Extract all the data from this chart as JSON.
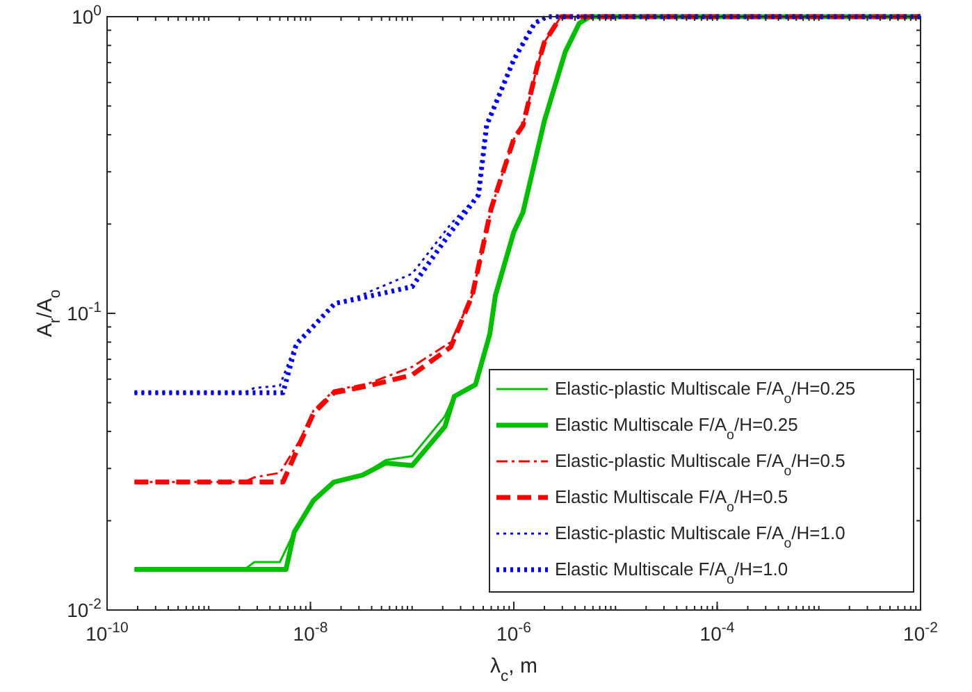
{
  "chart_data": {
    "type": "line",
    "xlabel": "λ$_{c}$, m",
    "ylabel": "A$_{r}$/A$_{o}$",
    "log": "xy",
    "xlim": [
      1e-10,
      0.01
    ],
    "ylim": [
      0.01,
      1
    ],
    "xticks": [
      {
        "value": 1e-10,
        "label": "10$^{-10}$"
      },
      {
        "value": 1e-08,
        "label": "10$^{-8}$"
      },
      {
        "value": 1e-06,
        "label": "10$^{-6}$"
      },
      {
        "value": 0.0001,
        "label": "10$^{-4}$"
      },
      {
        "value": 0.01,
        "label": "10$^{-2}$"
      }
    ],
    "yticks": [
      {
        "value": 0.01,
        "label": "10$^{-2}$"
      },
      {
        "value": 0.1,
        "label": "10$^{-1}$"
      },
      {
        "value": 1,
        "label": "10$^{0}$"
      }
    ],
    "grid": false,
    "legend": "bottom right",
    "marker": "none",
    "series": [
      {
        "name": "Elastic-plastic Multiscale F/A$_{o}$/H=0.25",
        "color": "#00c000",
        "line_style": "solid",
        "x": [
          1.86e-10,
          2.24e-09,
          2.8e-09,
          5e-09,
          6.92e-09,
          1.07e-08,
          1.7e-08,
          3.24e-08,
          5.5e-08,
          1e-07,
          2.1e-07,
          2.6e-07,
          4.2e-07,
          5.8e-07,
          6.6e-07,
          1e-06,
          1.23e-06,
          2e-06,
          3.2e-06,
          4.4e-06,
          5.6e-06,
          0.01
        ],
        "values": [
          0.0137,
          0.0137,
          0.0145,
          0.0145,
          0.0183,
          0.0234,
          0.027,
          0.0285,
          0.032,
          0.033,
          0.045,
          0.053,
          0.058,
          0.085,
          0.115,
          0.188,
          0.219,
          0.446,
          0.76,
          0.95,
          1,
          1
        ]
      },
      {
        "name": "Elastic Multiscale F/A$_{o}$/H=0.25",
        "color": "#00c000",
        "line_style": "solid",
        "x": [
          1.86e-10,
          5.75e-09,
          6.92e-09,
          1.07e-08,
          1.7e-08,
          3.24e-08,
          5.5e-08,
          1e-07,
          2.1e-07,
          2.6e-07,
          4.2e-07,
          5.8e-07,
          6.6e-07,
          1e-06,
          1.23e-06,
          2e-06,
          3.2e-06,
          4.4e-06,
          5.6e-06,
          0.01
        ],
        "values": [
          0.0137,
          0.0137,
          0.0183,
          0.0234,
          0.027,
          0.0285,
          0.0313,
          0.0307,
          0.0415,
          0.0525,
          0.0575,
          0.085,
          0.115,
          0.188,
          0.219,
          0.446,
          0.76,
          0.95,
          1,
          1
        ]
      },
      {
        "name": "Elastic-plastic Multiscale F/A$_{o}$/H=0.5",
        "color": "#ff0000",
        "line_style": "dashdot",
        "x": [
          1.86e-10,
          2.24e-09,
          2.8e-09,
          5e-09,
          7.76e-09,
          1.07e-08,
          1.7e-08,
          3.72e-08,
          1e-07,
          2.4e-07,
          3.9e-07,
          6e-07,
          1e-06,
          1.23e-06,
          1.7e-06,
          2e-06,
          2.9e-06,
          0.01
        ],
        "values": [
          0.027,
          0.027,
          0.028,
          0.029,
          0.037,
          0.047,
          0.055,
          0.058,
          0.066,
          0.08,
          0.115,
          0.226,
          0.387,
          0.43,
          0.68,
          0.82,
          1,
          1
        ]
      },
      {
        "name": "Elastic Multiscale F/A$_{o}$/H=0.5",
        "color": "#ff0000",
        "line_style": "dashed",
        "x": [
          1.86e-10,
          5.37e-09,
          7.76e-09,
          1.07e-08,
          1.7e-08,
          3.72e-08,
          1e-07,
          2.4e-07,
          3.9e-07,
          6e-07,
          1e-06,
          1.23e-06,
          1.7e-06,
          2e-06,
          2.9e-06,
          0.01
        ],
        "values": [
          0.027,
          0.027,
          0.036,
          0.046,
          0.054,
          0.057,
          0.062,
          0.077,
          0.115,
          0.226,
          0.387,
          0.43,
          0.68,
          0.82,
          1,
          1
        ]
      },
      {
        "name": "Elastic-plastic Multiscale F/A$_{o}$/H=1.0",
        "color": "#0000ff",
        "line_style": "dotted",
        "x": [
          1.86e-10,
          2.24e-09,
          2.8e-09,
          5e-09,
          7.24e-09,
          1.74e-08,
          2.95e-08,
          1e-07,
          2.4e-07,
          4.5e-07,
          5.4e-07,
          1e-06,
          1.6e-06,
          2.1e-06,
          0.01
        ],
        "values": [
          0.054,
          0.054,
          0.056,
          0.057,
          0.08,
          0.108,
          0.114,
          0.136,
          0.2,
          0.251,
          0.43,
          0.716,
          0.95,
          1,
          1
        ]
      },
      {
        "name": "Elastic Multiscale F/A$_{o}$/H=1.0",
        "color": "#0000ff",
        "line_style": "dotted",
        "x": [
          1.86e-10,
          5.37e-09,
          7.24e-09,
          1.74e-08,
          2.95e-08,
          1e-07,
          2.4e-07,
          4.5e-07,
          5.4e-07,
          1e-06,
          1.6e-06,
          2.1e-06,
          0.01
        ],
        "values": [
          0.054,
          0.054,
          0.0785,
          0.108,
          0.112,
          0.123,
          0.188,
          0.251,
          0.43,
          0.716,
          0.95,
          1,
          1
        ]
      }
    ]
  }
}
